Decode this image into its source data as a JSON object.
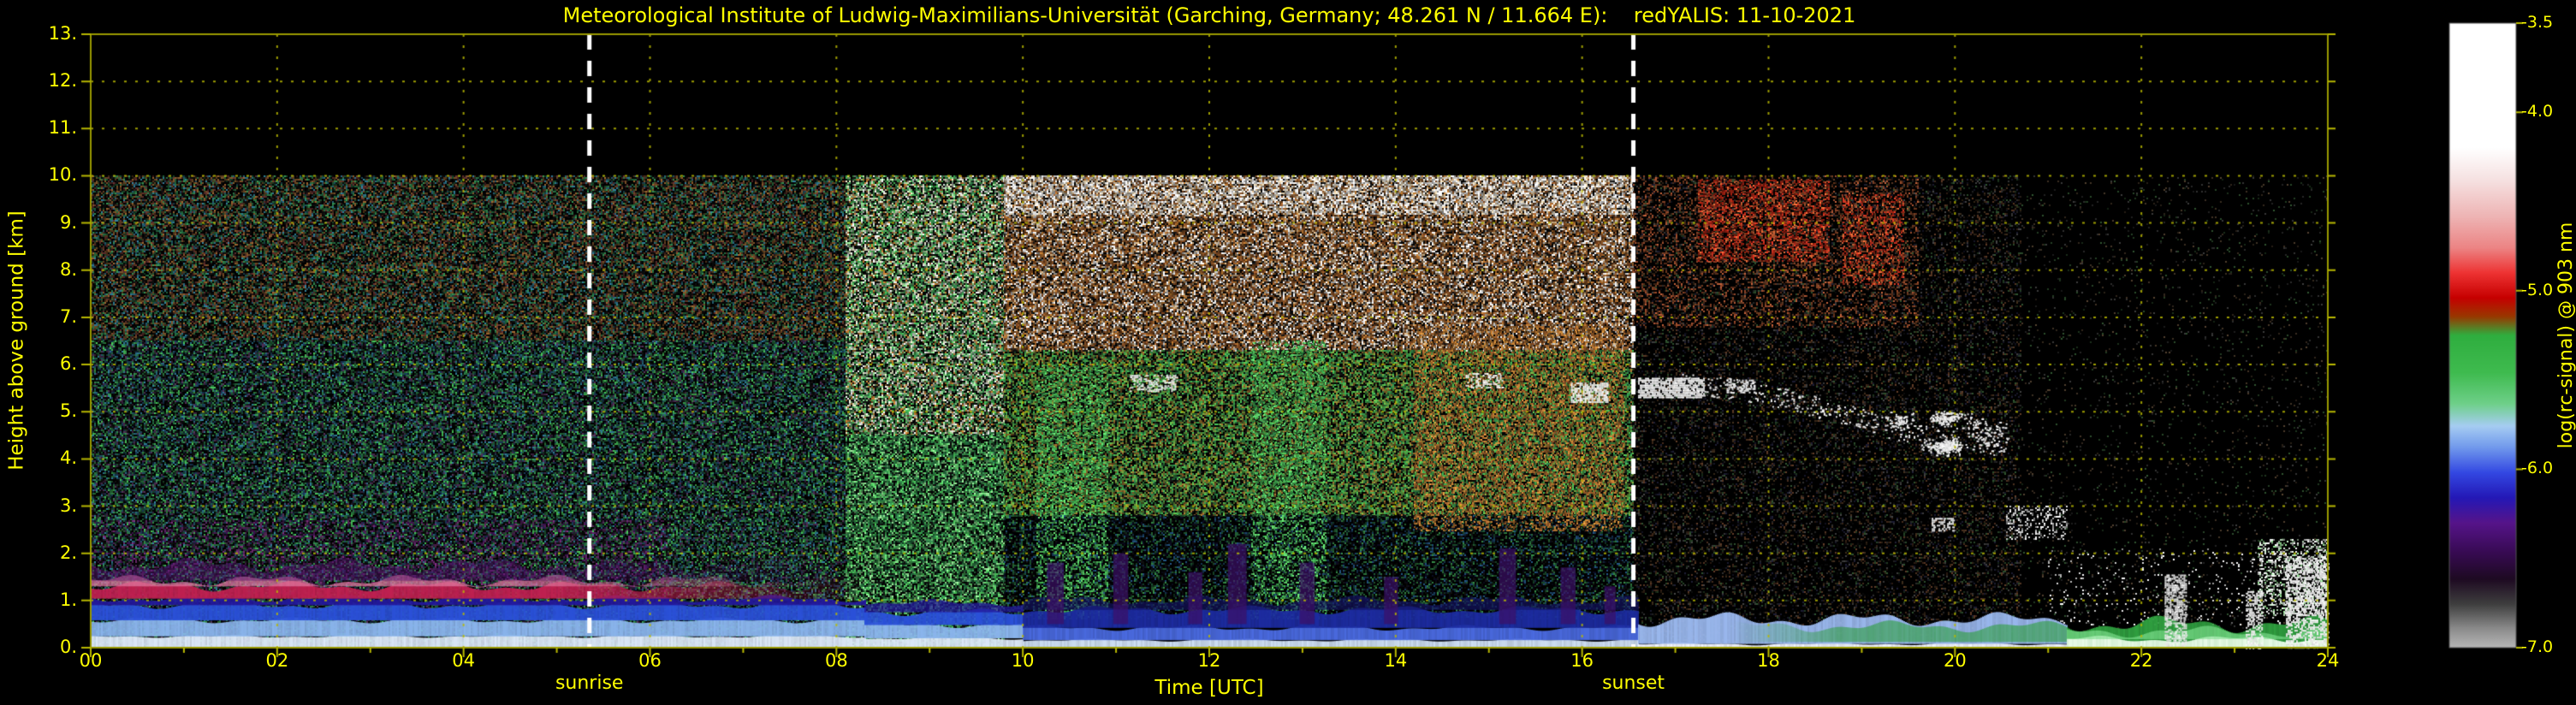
{
  "style": {
    "background": "#000000",
    "text_color": "#ffff00",
    "grid_color": "#b8b800",
    "frame_color": "#9a9a00",
    "event_line_color": "#ffffff"
  },
  "chart_data": {
    "type": "heatmap",
    "title": "Meteorological Institute of Ludwig-Maximilians-Universität (Garching, Germany; 48.261 N / 11.664 E):    redYALIS: 11-10-2021",
    "station": "Garching, Germany",
    "coordinates": "48.261 N / 11.664 E",
    "instrument": "redYALIS",
    "date": "11-10-2021",
    "xlabel": "Time [UTC]",
    "ylabel": "Height above ground [km]",
    "xlim": [
      0,
      24
    ],
    "ylim": [
      0,
      13
    ],
    "grid": true,
    "data_ceiling_km": 10,
    "x_tick_values": [
      0,
      2,
      4,
      6,
      8,
      10,
      12,
      14,
      16,
      18,
      20,
      22,
      24
    ],
    "x_tick_labels": [
      "00",
      "02",
      "04",
      "06",
      "08",
      "10",
      "12",
      "14",
      "16",
      "18",
      "20",
      "22",
      "24"
    ],
    "y_tick_labels": [
      "0.",
      "1.",
      "2.",
      "3.",
      "4.",
      "5.",
      "6.",
      "7.",
      "8.",
      "9.",
      "10.",
      "11.",
      "12.",
      "13."
    ],
    "colorbar": {
      "label": "log(rc-signal) @ 903 nm",
      "min": -7.0,
      "max": -3.5,
      "tick_values": [
        -3.5,
        -4.0,
        -5.0,
        -6.0,
        -7.0
      ],
      "tick_labels": [
        "-3.5",
        "-4.0",
        "-5.0",
        "-6.0",
        "-7.0"
      ],
      "stops": [
        [
          0.0,
          "#ffffff"
        ],
        [
          0.2,
          "#ffffff"
        ],
        [
          0.25,
          "#f6e2e2"
        ],
        [
          0.31,
          "#eeb4b4"
        ],
        [
          0.36,
          "#ec8484"
        ],
        [
          0.4,
          "#ee3333"
        ],
        [
          0.44,
          "#c60000"
        ],
        [
          0.47,
          "#983800"
        ],
        [
          0.5,
          "#2fae3f"
        ],
        [
          0.56,
          "#3fbb4f"
        ],
        [
          0.61,
          "#6fd08a"
        ],
        [
          0.645,
          "#a6cdf2"
        ],
        [
          0.68,
          "#7098ec"
        ],
        [
          0.72,
          "#3348e2"
        ],
        [
          0.76,
          "#2418b6"
        ],
        [
          0.8,
          "#56148a"
        ],
        [
          0.85,
          "#360a50"
        ],
        [
          0.89,
          "#1e0a22"
        ],
        [
          0.93,
          "#3e3e3e"
        ],
        [
          0.97,
          "#8c8c8c"
        ],
        [
          1.0,
          "#b6b6b6"
        ]
      ]
    },
    "events": [
      {
        "label": "sunrise",
        "time_utc": 5.35
      },
      {
        "label": "sunset",
        "time_utc": 16.55
      }
    ],
    "noise_regions": [
      {
        "name": "early-morning background upper",
        "t": [
          0,
          8.1
        ],
        "h": [
          6.5,
          10
        ],
        "density": 0.8,
        "colors": [
          "#2e8049",
          "#6e4a26",
          "#8a5a2a",
          "#1e5c36",
          "#2a6e86",
          "#5a2a2a",
          "#101010",
          "#0a0a0a"
        ]
      },
      {
        "name": "early-morning background lower",
        "t": [
          0,
          8.1
        ],
        "h": [
          0,
          6.5
        ],
        "density": 0.8,
        "colors": [
          "#1e5c36",
          "#2e8049",
          "#3fae4f",
          "#2a6e86",
          "#16324e",
          "#4a2a4e",
          "#101010",
          "#0a0a0a"
        ]
      },
      {
        "name": "purple haze above boundary layer",
        "t": [
          0,
          6.2
        ],
        "h": [
          1.1,
          2.7
        ],
        "density": 0.3,
        "colors": [
          "#55205e",
          "#38104a",
          "#6e2a6e",
          "#101010"
        ]
      },
      {
        "name": "mid-morning brightening aloft",
        "t": [
          8.1,
          9.8
        ],
        "h": [
          4.5,
          10
        ],
        "density": 0.85,
        "colors": [
          "#8fd98f",
          "#cfcfb0",
          "#e8e8e8",
          "#3fae4f",
          "#b4742e",
          "#2e8049",
          "#101010"
        ]
      },
      {
        "name": "mid-morning green column",
        "t": [
          8.1,
          9.8
        ],
        "h": [
          0,
          4.5
        ],
        "density": 0.85,
        "colors": [
          "#3fae4f",
          "#5ecf6a",
          "#2e8049",
          "#8fd98f",
          "#1e5c36",
          "#101010"
        ]
      },
      {
        "name": "daytime solar noise upper brown-white",
        "t": [
          9.8,
          16.55
        ],
        "h": [
          6.3,
          10
        ],
        "density": 0.9,
        "colors": [
          "#9a5c2c",
          "#b4742e",
          "#7a4a22",
          "#c9ab80",
          "#ffffff",
          "#e0e0e0",
          "#6a3a1a",
          "#181818"
        ]
      },
      {
        "name": "daytime white cap near 10 km",
        "t": [
          9.8,
          16.55
        ],
        "h": [
          9.2,
          10
        ],
        "density": 0.5,
        "colors": [
          "#ffffff",
          "#f0f0f0",
          "#d8c8a8"
        ]
      },
      {
        "name": "daytime mid-level green",
        "t": [
          9.8,
          16.55
        ],
        "h": [
          2.8,
          6.3
        ],
        "density": 0.8,
        "colors": [
          "#3fae4f",
          "#57b049",
          "#7a9a3a",
          "#9a6a2c",
          "#2e8049",
          "#141414"
        ]
      },
      {
        "name": "daytime low-level dark",
        "t": [
          9.8,
          16.55
        ],
        "h": [
          0.6,
          2.8
        ],
        "density": 0.55,
        "colors": [
          "#1a4f2e",
          "#1e4a72",
          "#2f7a3f",
          "#101010",
          "#0a0a1e"
        ]
      },
      {
        "name": "afternoon orange columns",
        "t": [
          14.2,
          16.45
        ],
        "h": [
          2.5,
          6.8
        ],
        "density": 0.4,
        "colors": [
          "#b4742e",
          "#c98a3a",
          "#9a5c2c"
        ]
      },
      {
        "name": "green updraft column",
        "t": [
          10.15,
          10.9
        ],
        "h": [
          0.6,
          6.0
        ],
        "density": 0.35,
        "colors": [
          "#3fae4f",
          "#5ecf6a"
        ]
      },
      {
        "name": "green updraft column",
        "t": [
          12.45,
          13.25
        ],
        "h": [
          0.6,
          6.5
        ],
        "density": 0.35,
        "colors": [
          "#3fae4f",
          "#5ecf6a"
        ]
      },
      {
        "name": "evening dark background",
        "t": [
          16.55,
          20.7
        ],
        "h": [
          0,
          10
        ],
        "density": 0.3,
        "colors": [
          "#3a2a1a",
          "#553522",
          "#2a4a2a",
          "#1a1a2e",
          "#3c3c3c",
          "#0a0a0a"
        ]
      },
      {
        "name": "evening reddish tint aloft",
        "t": [
          16.55,
          19.6
        ],
        "h": [
          6.8,
          10
        ],
        "density": 0.25,
        "colors": [
          "#8a4226",
          "#aa5533",
          "#6e3a1e"
        ]
      },
      {
        "name": "evening red aerosol streaks",
        "t": [
          17.25,
          18.65
        ],
        "h": [
          8.2,
          9.9
        ],
        "density": 0.5,
        "colors": [
          "#cc3322",
          "#aa2211",
          "#dd6633",
          "#881a0e"
        ]
      },
      {
        "name": "evening red aerosol streaks",
        "t": [
          18.8,
          19.45
        ],
        "h": [
          7.7,
          9.6
        ],
        "density": 0.38,
        "colors": [
          "#cc3322",
          "#aa2211",
          "#dd6633"
        ]
      },
      {
        "name": "late-night clean background",
        "t": [
          20.7,
          24
        ],
        "h": [
          0,
          10
        ],
        "density": 0.05,
        "colors": [
          "#343434",
          "#2a4a2a",
          "#4a3a2a"
        ]
      },
      {
        "name": "late-night low speckle cluster",
        "t": [
          23.25,
          24
        ],
        "h": [
          0.7,
          2.3
        ],
        "density": 0.4,
        "colors": [
          "#ffffff",
          "#d8ffd8",
          "#8fd98f",
          "#e8e8e8"
        ]
      },
      {
        "name": "cloud remnant speckle",
        "t": [
          20.55,
          21.2
        ],
        "h": [
          2.3,
          3.0
        ],
        "density": 0.3,
        "colors": [
          "#ffffff",
          "#e8e8e8",
          "#c8c8c8"
        ]
      },
      {
        "name": "sparse late-night echoes",
        "t": [
          21.0,
          24
        ],
        "h": [
          0.5,
          2.1
        ],
        "density": 0.06,
        "colors": [
          "#ffffff",
          "#cccccc"
        ]
      }
    ],
    "surface_layers": [
      {
        "name": "nocturnal stratified aerosol layers",
        "t": [
          0,
          8.3
        ],
        "bands": [
          {
            "h": [
              0,
              0.24
            ],
            "color": "#dce8f8"
          },
          {
            "h": [
              0.24,
              0.58
            ],
            "color": "#8ab4ec",
            "wobble": 0.04
          },
          {
            "h": [
              0.58,
              0.9
            ],
            "color": "#2a50d8",
            "wobble": 0.05
          },
          {
            "h": [
              0.9,
              1.04
            ],
            "color": "#23179a",
            "wobble": 0.05
          },
          {
            "h": [
              1.04,
              1.3
            ],
            "color": "#c02050",
            "wobble": 0.07,
            "fade_after_t": 5.0
          },
          {
            "h": [
              1.3,
              1.42
            ],
            "color": "#e078a0",
            "alpha": 0.8,
            "wobble": 0.08,
            "fade_after_t": 4.5
          },
          {
            "h": [
              1.42,
              1.75
            ],
            "color": "#541470",
            "alpha": 0.5,
            "wobble": 0.1,
            "fade_after_t": 4.0
          }
        ]
      },
      {
        "name": "morning transition layer",
        "t": [
          8.3,
          10.0
        ],
        "bands": [
          {
            "h": [
              0,
              0.2
            ],
            "color": "#dce8f8"
          },
          {
            "h": [
              0.2,
              0.48
            ],
            "color": "#8ab4ec",
            "wobble": 0.04
          },
          {
            "h": [
              0.48,
              0.75
            ],
            "color": "#2a50d8",
            "wobble": 0.05
          },
          {
            "h": [
              0.75,
              0.95
            ],
            "color": "#23179a",
            "alpha": 0.8,
            "wobble": 0.05
          }
        ]
      },
      {
        "name": "daytime shallow mixed layer",
        "t": [
          10.0,
          16.6
        ],
        "bands": [
          {
            "h": [
              0,
              0.16
            ],
            "color": "#cfe0f4"
          },
          {
            "h": [
              0.16,
              0.42
            ],
            "color": "#4a6ae0",
            "wobble": 0.04
          },
          {
            "h": [
              0.42,
              0.8
            ],
            "color": "#1c2ba0",
            "wobble": 0.06
          },
          {
            "h": [
              0.8,
              1.0
            ],
            "color": "#141464",
            "alpha": 0.7,
            "wobble": 0.07
          }
        ]
      },
      {
        "name": "evening residual layer",
        "t": [
          16.6,
          21.2
        ],
        "bands": [
          {
            "h": [
              0,
              0.08
            ],
            "color": "#f2f6ff"
          },
          {
            "h": [
              0.08,
              0.6
            ],
            "color": "#9ab8ee",
            "wobble": 0.1
          },
          {
            "h": [
              0.12,
              0.45
            ],
            "color": "#2f9e3f",
            "alpha": 0.65,
            "ramp_from_t": 17.6,
            "wobble": 0.08
          }
        ]
      },
      {
        "name": "late-night shallow green layer",
        "t": [
          21.2,
          24
        ],
        "bands": [
          {
            "h": [
              0,
              0.5
            ],
            "color": "#2f9e3f",
            "wobble": 0.12
          },
          {
            "h": [
              0,
              0.18
            ],
            "color": "#eafbe8",
            "wobble": 0.05
          },
          {
            "h": [
              0.18,
              0.34
            ],
            "color": "#7fe08f",
            "alpha": 0.7,
            "wobble": 0.08
          }
        ]
      }
    ],
    "plumes": {
      "name": "low-level purple plumes",
      "color": "#3c1066",
      "alpha": 0.7,
      "base_km": 0.5,
      "items": [
        {
          "t": 10.35,
          "w": 0.18,
          "top": 1.8
        },
        {
          "t": 11.05,
          "w": 0.16,
          "top": 2.0
        },
        {
          "t": 11.85,
          "w": 0.15,
          "top": 1.6
        },
        {
          "t": 12.3,
          "w": 0.2,
          "top": 2.2
        },
        {
          "t": 13.05,
          "w": 0.16,
          "top": 1.8
        },
        {
          "t": 13.95,
          "w": 0.15,
          "top": 1.5
        },
        {
          "t": 15.2,
          "w": 0.18,
          "top": 2.1
        },
        {
          "t": 15.85,
          "w": 0.16,
          "top": 1.7
        },
        {
          "t": 16.3,
          "w": 0.12,
          "top": 1.3
        }
      ]
    },
    "clouds": [
      {
        "name": "thin cloud streak",
        "t": [
          11.15,
          11.65
        ],
        "h": [
          5.45,
          5.78
        ],
        "density": 0.5
      },
      {
        "name": "thin cloud streak",
        "t": [
          14.75,
          15.15
        ],
        "h": [
          5.5,
          5.82
        ],
        "density": 0.45
      },
      {
        "name": "bright cloud blob",
        "t": [
          15.88,
          16.28
        ],
        "h": [
          5.22,
          5.62
        ],
        "density": 0.85
      },
      {
        "name": "bright cloud streak at sunset",
        "t": [
          16.6,
          17.3
        ],
        "h": [
          5.32,
          5.72
        ],
        "density": 0.9
      },
      {
        "name": "cloud streak",
        "t": [
          17.55,
          17.85
        ],
        "h": [
          5.42,
          5.68
        ],
        "density": 0.6
      },
      {
        "name": "descending cloud band",
        "path": [
          [
            17.0,
            5.62
          ],
          [
            17.6,
            5.5
          ],
          [
            18.1,
            5.32
          ],
          [
            18.5,
            5.12
          ],
          [
            18.9,
            4.92
          ],
          [
            19.3,
            4.66
          ],
          [
            19.7,
            4.5
          ],
          [
            20.05,
            4.42
          ]
        ],
        "thickness": 0.22,
        "density": 0.7
      },
      {
        "name": "cloud blob cluster",
        "t": [
          19.35,
          20.35
        ],
        "h": [
          4.05,
          5.05
        ],
        "density": 0.55,
        "blobby": true
      },
      {
        "name": "small low cloud",
        "t": [
          19.75,
          19.98
        ],
        "h": [
          2.48,
          2.75
        ],
        "density": 0.6
      },
      {
        "name": "shallow precip spike",
        "t": [
          22.25,
          22.48
        ],
        "h": [
          0.0,
          1.55
        ],
        "density": 0.7
      },
      {
        "name": "shallow precip spike",
        "t": [
          23.12,
          23.3
        ],
        "h": [
          0.0,
          1.2
        ],
        "density": 0.6
      },
      {
        "name": "shallow precip and cloud",
        "t": [
          23.55,
          24.0
        ],
        "h": [
          0.0,
          1.9
        ],
        "density": 0.65
      }
    ]
  }
}
